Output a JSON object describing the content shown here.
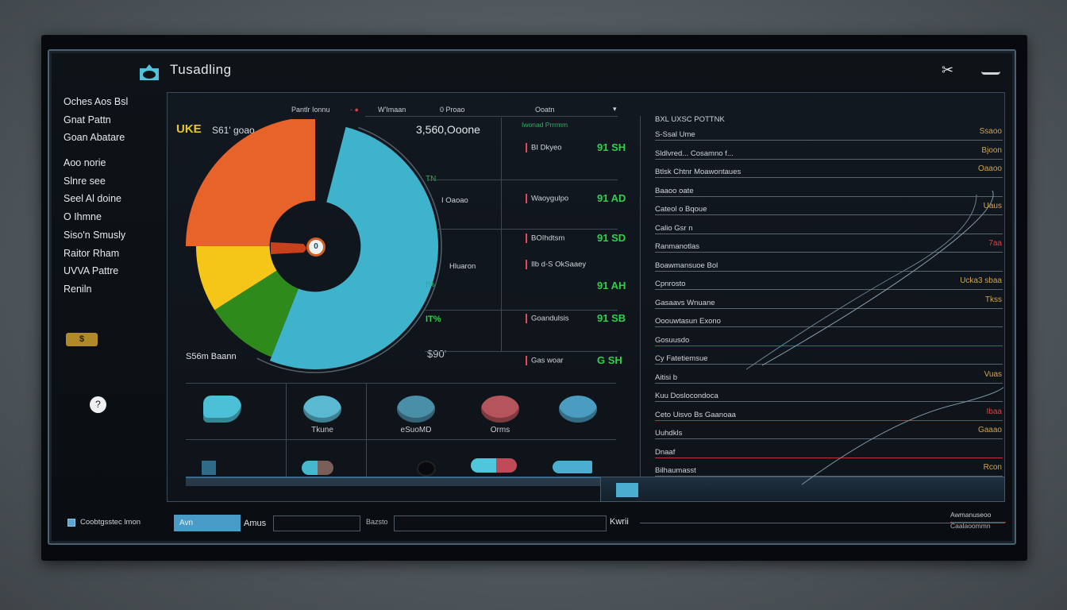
{
  "app": {
    "title": "Tusadling"
  },
  "sidebar": {
    "items": [
      "Oches Aos Bsl",
      "Gnat Pattn",
      "Goan Abatare",
      "Aoo norie",
      "Slnre see",
      "Seel Al doine",
      "O Ihmne",
      "Siso'n Smusly",
      "Raitor Rham",
      "UVVA Pattre",
      "Reniln"
    ],
    "badge": "$",
    "help": "?",
    "footer_checkbox": "Coobtgsstec lmon"
  },
  "window": {
    "icons": [
      "scissors-icon",
      "tray-icon"
    ]
  },
  "toolbar": {
    "columns": [
      "Pantlr Ionnu",
      "W'Imaan",
      "0 Proao",
      "Ooatn"
    ]
  },
  "chart_panel": {
    "badge": "UKE",
    "subtitle": "S61' goao",
    "total": "3,560,Ooone",
    "footer": "S56m Baann",
    "side_labels": [
      "TN",
      "I Oaoao",
      "Hluaron",
      "I%",
      "IT%",
      "$90'"
    ],
    "center": "0"
  },
  "chart_data": {
    "type": "pie",
    "title": "UKE S61' goao",
    "categories": [
      "Orange",
      "Yellow",
      "Green",
      "Blue",
      "Other"
    ],
    "values": [
      25,
      9,
      10,
      52,
      4
    ],
    "colors": [
      "#e8632a",
      "#f5c518",
      "#2f8a1c",
      "#3fb3cc",
      "#0c1116"
    ],
    "hole": 0.37
  },
  "metrics": {
    "header": "Iwonad Prrrmm",
    "rows": [
      {
        "label": "BI Dkyeo",
        "value": "91 SH"
      },
      {
        "label": "Waoygulpo",
        "value": "91 AD"
      },
      {
        "label": "BOIhdtsm",
        "value": "91 SD"
      },
      {
        "label": "Ilb d-S OkSaaey",
        "value": "91 AH"
      },
      {
        "label": "Goandulsis",
        "value": "91 SB"
      },
      {
        "label": "Gas woar",
        "value": "G SH"
      }
    ]
  },
  "tiles": [
    {
      "label": "",
      "icon": "shield-icon",
      "color": "#4bc0d6"
    },
    {
      "label": "Tkune",
      "icon": "chat-bubble-icon",
      "color": "#5ab8d0"
    },
    {
      "label": "eSuoMD",
      "icon": "database-icon",
      "color": "#4a8fa8"
    },
    {
      "label": "Orms",
      "icon": "tag-icon",
      "color": "#b5545a"
    },
    {
      "label": "",
      "icon": "gauge-icon",
      "color": "#4a9cc0"
    }
  ],
  "list": {
    "header": "BXL UXSC POTTNK",
    "rows": [
      {
        "label": "S-Ssal Ume",
        "value": "Ssaoo",
        "line": "#5a6570"
      },
      {
        "label": "Sldlvred... Cosamno f...",
        "value": "Bjoon",
        "line": "#5a6570"
      },
      {
        "label": "Btlsk Chtnr Moawontaues",
        "value": "Oaaoo",
        "line": "#5a6570"
      },
      {
        "label": "Baaoo oate",
        "value": "",
        "line": "#5a6570"
      },
      {
        "label": "Cateol o Bqoue",
        "value": "Uaus",
        "line": "#5a6570"
      },
      {
        "label": "Calio Gsr n",
        "value": "",
        "line": "#5a6570"
      },
      {
        "label": "Ranmanotlas",
        "value": "7aa",
        "line": "#5a6570"
      },
      {
        "label": "Boawmansuoe Bol",
        "value": "",
        "line": "#5a6570"
      },
      {
        "label": "Cpnrosto",
        "value": "Ucka3  sbaa",
        "line": "#5a6570"
      },
      {
        "label": "Gasaavs Wnuane",
        "value": "Tkss",
        "line": "#5a6570"
      },
      {
        "label": "Ooouwtasun Exono",
        "value": "",
        "line": "#5a6570"
      },
      {
        "label": "Gosuusdo",
        "value": "",
        "line": "#c0323a"
      },
      {
        "label": "Cy Fatetiemsue",
        "value": "",
        "line": "#5a6570"
      },
      {
        "label": "Aitisi b",
        "value": "Vuas",
        "line": "#5a6570"
      },
      {
        "label": "Kuu Doslocondoca",
        "value": "",
        "line": "#5a6570"
      },
      {
        "label": "Ceto Uisvo Bs Gaanoaa",
        "value": "Ibaa",
        "line": "#c0323a"
      },
      {
        "label": "Uuhdkls",
        "value": "Gaaao",
        "line": "#5a6570"
      },
      {
        "label": "Dnaaf",
        "value": "",
        "line": "#c0323a"
      },
      {
        "label": "Bilhaumasst",
        "value": "Rcon",
        "line": "#5a6570"
      }
    ]
  },
  "bottom": {
    "primary_button": "Avn",
    "label1": "Amus",
    "label2": "Bazsto",
    "label3": "Kwrii",
    "right1": "Awmanuseoo",
    "right2": "Caalaoommn"
  }
}
